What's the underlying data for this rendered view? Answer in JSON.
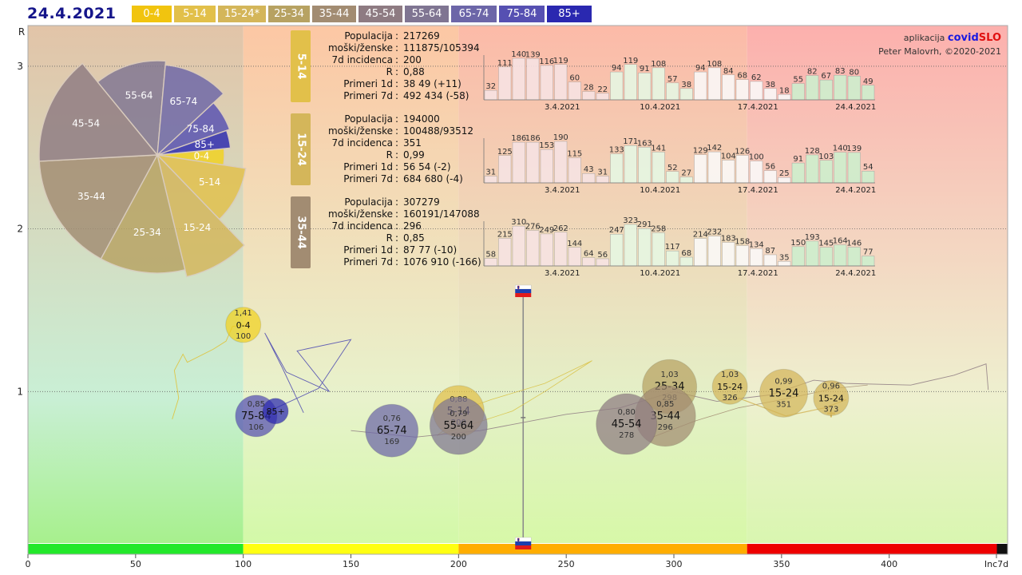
{
  "title": "24.4.2021",
  "legend": [
    {
      "label": "0-4",
      "color": "#f1c40f"
    },
    {
      "label": "5-14",
      "color": "#e2c04a"
    },
    {
      "label": "15-24*",
      "color": "#d4b65a"
    },
    {
      "label": "25-34",
      "color": "#b7a262"
    },
    {
      "label": "35-44",
      "color": "#a28c72"
    },
    {
      "label": "45-54",
      "color": "#8e7b82"
    },
    {
      "label": "55-64",
      "color": "#7f7592"
    },
    {
      "label": "65-74",
      "color": "#6c66a8"
    },
    {
      "label": "75-84",
      "color": "#5650b2"
    },
    {
      "label": "85+",
      "color": "#2a28b0"
    }
  ],
  "credits": {
    "app_prefix": "aplikacija ",
    "app_a": "covid",
    "app_b": "SLO",
    "author": "Peter Malovrh, ©2020-2021"
  },
  "stat_labels": [
    "Populacija",
    "moški/ženske",
    "7d incidenca",
    "R",
    "Primeri 1d",
    "Primeri 7d"
  ],
  "panels": [
    {
      "group": "5-14",
      "color": "#e2c04a",
      "values": [
        "217269",
        "111875/105394",
        "200",
        "0,88",
        "38 49 (+11)",
        "492 434 (-58)"
      ],
      "bars": [
        32,
        111,
        140,
        139,
        116,
        119,
        60,
        28,
        22,
        94,
        119,
        91,
        108,
        57,
        38,
        94,
        108,
        84,
        68,
        62,
        38,
        18,
        55,
        82,
        67,
        83,
        80,
        49
      ],
      "dates": [
        "3.4.2021",
        "10.4.2021",
        "17.4.2021",
        "24.4.2021"
      ]
    },
    {
      "group": "15-24",
      "color": "#d4b65a",
      "values": [
        "194000",
        "100488/93512",
        "351",
        "0,99",
        "56 54 (-2)",
        "684 680 (-4)"
      ],
      "bars": [
        31,
        125,
        186,
        186,
        153,
        190,
        115,
        43,
        31,
        133,
        171,
        163,
        141,
        52,
        27,
        129,
        142,
        104,
        126,
        100,
        56,
        25,
        91,
        128,
        103,
        140,
        139,
        54
      ],
      "dates": [
        "3.4.2021",
        "10.4.2021",
        "17.4.2021",
        "24.4.2021"
      ]
    },
    {
      "group": "35-44",
      "color": "#a28c72",
      "values": [
        "307279",
        "160191/147088",
        "296",
        "0,85",
        "87 77 (-10)",
        "1076 910 (-166)"
      ],
      "bars": [
        58,
        215,
        310,
        276,
        249,
        262,
        144,
        64,
        56,
        247,
        323,
        291,
        258,
        117,
        68,
        214,
        232,
        183,
        158,
        134,
        87,
        35,
        150,
        193,
        145,
        164,
        146,
        77
      ],
      "dates": [
        "3.4.2021",
        "10.4.2021",
        "17.4.2021",
        "24.4.2021"
      ]
    }
  ],
  "chart_data": {
    "type": "scatter",
    "title": "24.4.2021",
    "xlabel": "Inc7d",
    "ylabel": "R",
    "xlim": [
      0,
      455
    ],
    "ylim": [
      0,
      3.25
    ],
    "x_ticks": [
      "0",
      "50",
      "100",
      "150",
      "200",
      "250",
      "300",
      "350",
      "400",
      "Inc7d"
    ],
    "y_ticks": [
      "1",
      "2",
      "3"
    ],
    "grid": "horizontal dotted at R=1,2,3",
    "zones": [
      {
        "from": 0,
        "to": 100,
        "color": "#22e82a"
      },
      {
        "from": 100,
        "to": 200,
        "color": "#ffff12"
      },
      {
        "from": 200,
        "to": 334,
        "color": "#ffad00"
      },
      {
        "from": 334,
        "to": 450,
        "color": "#ee0000"
      },
      {
        "from": 450,
        "to": 455,
        "color": "#111111"
      }
    ],
    "national": {
      "x": 230
    },
    "bubbles": [
      {
        "label": "0-4",
        "r": "1,41",
        "inc": "100",
        "x": 100,
        "y": 1.41,
        "size": 22,
        "color": "#f2d21e"
      },
      {
        "label": "5-14",
        "r": "0,88",
        "inc": "200",
        "x": 200,
        "y": 0.88,
        "size": 32,
        "color": "#e2c04a"
      },
      {
        "label": "15-24",
        "r": "1,03",
        "inc": "326",
        "x": 326,
        "y": 1.03,
        "size": 22,
        "color": "#d4b65a"
      },
      {
        "label": "15-24",
        "r": "0,99",
        "inc": "351",
        "x": 351,
        "y": 0.99,
        "size": 30,
        "color": "#d4b65a"
      },
      {
        "label": "15-24",
        "r": "0,96",
        "inc": "373",
        "x": 373,
        "y": 0.96,
        "size": 22,
        "color": "#d4b65a"
      },
      {
        "label": "25-34",
        "r": "1,03",
        "inc": "298",
        "x": 298,
        "y": 1.03,
        "size": 34,
        "color": "#b7a262"
      },
      {
        "label": "35-44",
        "r": "0,85",
        "inc": "296",
        "x": 296,
        "y": 0.85,
        "size": 38,
        "color": "#a28c72"
      },
      {
        "label": "45-54",
        "r": "0,80",
        "inc": "278",
        "x": 278,
        "y": 0.8,
        "size": 38,
        "color": "#8e7b82"
      },
      {
        "label": "55-64",
        "r": "0,79",
        "inc": "200",
        "x": 200,
        "y": 0.79,
        "size": 36,
        "color": "#7f7592"
      },
      {
        "label": "65-74",
        "r": "0,76",
        "inc": "169",
        "x": 169,
        "y": 0.76,
        "size": 33,
        "color": "#6c66a8"
      },
      {
        "label": "75-84",
        "r": "0,85",
        "inc": "106",
        "x": 106,
        "y": 0.85,
        "size": 26,
        "color": "#5650b2"
      },
      {
        "label": "85+",
        "r": "",
        "inc": "",
        "x": 115,
        "y": 0.88,
        "size": 16,
        "color": "#2a28b0"
      }
    ],
    "pie": {
      "slices": [
        {
          "label": "0-4",
          "value": 12,
          "r": 84,
          "color": "#f2d21e"
        },
        {
          "label": "5-14",
          "value": 32,
          "r": 112,
          "color": "#e2c04a"
        },
        {
          "label": "15-24",
          "value": 26,
          "r": 157,
          "color": "#d4b65a"
        },
        {
          "label": "25-34",
          "value": 36,
          "r": 148,
          "color": "#b7a262"
        },
        {
          "label": "35-44",
          "value": 50,
          "r": 148,
          "color": "#a28c72"
        },
        {
          "label": "45-54",
          "value": 46,
          "r": 148,
          "color": "#8e7b82"
        },
        {
          "label": "55-64",
          "value": 38,
          "r": 118,
          "color": "#7f7592"
        },
        {
          "label": "65-74",
          "value": 36,
          "r": 113,
          "color": "#6c66a8"
        },
        {
          "label": "75-84",
          "value": 20,
          "r": 96,
          "color": "#5650b2"
        },
        {
          "label": "85+",
          "value": 12,
          "r": 92,
          "color": "#2a28b0"
        }
      ]
    }
  }
}
